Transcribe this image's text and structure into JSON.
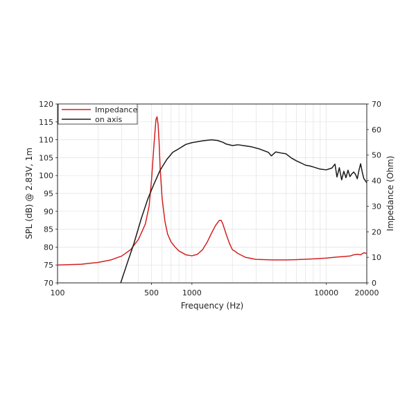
{
  "chart_data": {
    "type": "line",
    "xlabel": "Frequency (Hz)",
    "ylabel_left": "SPL (dB) @ 2.83V, 1m",
    "ylabel_right": "Impedance (Ohm)",
    "x_scale": "log",
    "xlim": [
      100,
      20000
    ],
    "ylim_left": [
      70,
      120
    ],
    "ylim_right": [
      0,
      70
    ],
    "x_ticks": [
      {
        "value": 100,
        "label": "100"
      },
      {
        "value": 500,
        "label": "500"
      },
      {
        "value": 1000,
        "label": "1000"
      },
      {
        "value": 10000,
        "label": "10000"
      },
      {
        "value": 20000,
        "label": "20000"
      }
    ],
    "y_ticks_left": [
      {
        "value": 70,
        "label": "70"
      },
      {
        "value": 75,
        "label": "75"
      },
      {
        "value": 80,
        "label": "80"
      },
      {
        "value": 85,
        "label": "85"
      },
      {
        "value": 90,
        "label": "90"
      },
      {
        "value": 95,
        "label": "95"
      },
      {
        "value": 100,
        "label": "100"
      },
      {
        "value": 105,
        "label": "105"
      },
      {
        "value": 110,
        "label": "110"
      },
      {
        "value": 115,
        "label": "115"
      },
      {
        "value": 120,
        "label": "120"
      }
    ],
    "y_ticks_right": [
      {
        "value": 0,
        "label": "0"
      },
      {
        "value": 10,
        "label": "10"
      },
      {
        "value": 20,
        "label": "20"
      },
      {
        "value": 30,
        "label": "30"
      },
      {
        "value": 40,
        "label": "40"
      },
      {
        "value": 50,
        "label": "50"
      },
      {
        "value": 60,
        "label": "60"
      },
      {
        "value": 70,
        "label": "70"
      }
    ],
    "grid": true,
    "legend_position": "top-left",
    "series": [
      {
        "name": "Impedance",
        "color": "#d42020",
        "axis": "right",
        "x": [
          100,
          150,
          200,
          250,
          300,
          350,
          400,
          450,
          480,
          500,
          520,
          540,
          550,
          560,
          570,
          580,
          600,
          630,
          660,
          700,
          750,
          800,
          900,
          1000,
          1100,
          1200,
          1300,
          1400,
          1500,
          1600,
          1650,
          1700,
          1800,
          1900,
          2000,
          2100,
          2200,
          2500,
          3000,
          4000,
          5000,
          6000,
          8000,
          10000,
          12000,
          15000,
          16000,
          17000,
          18000,
          19000,
          20000
        ],
        "y": [
          7,
          7.3,
          8,
          9,
          10.5,
          13,
          17,
          23,
          30,
          40,
          53,
          64,
          65,
          62,
          55,
          45,
          33,
          24,
          19,
          16,
          14,
          12.5,
          11,
          10.6,
          11.2,
          13,
          16,
          19.5,
          22.5,
          24.5,
          24.5,
          23,
          19,
          15.5,
          13,
          12.3,
          11.5,
          10,
          9.2,
          9,
          9,
          9.1,
          9.4,
          9.7,
          10.1,
          10.5,
          11,
          11.2,
          11,
          11.8,
          11.5
        ]
      },
      {
        "name": "on axis",
        "color": "#1a1a1a",
        "axis": "left",
        "x": [
          295,
          330,
          370,
          420,
          470,
          520,
          580,
          650,
          720,
          800,
          900,
          1000,
          1200,
          1400,
          1550,
          1700,
          1800,
          2000,
          2200,
          2500,
          2800,
          3200,
          3700,
          3900,
          4200,
          4600,
          5000,
          5500,
          6000,
          6500,
          7000,
          7500,
          8000,
          9000,
          10000,
          11000,
          11600,
          12000,
          12500,
          13000,
          13500,
          14000,
          14500,
          15000,
          15500,
          16000,
          16500,
          17000,
          17500,
          18000,
          18500,
          19000,
          20000
        ],
        "y": [
          70,
          75.5,
          81,
          88,
          93.5,
          97.5,
          101.5,
          104.5,
          106.5,
          107.5,
          108.7,
          109.2,
          109.7,
          110,
          109.8,
          109.3,
          108.8,
          108.4,
          108.6,
          108.3,
          108,
          107.4,
          106.5,
          105.5,
          106.6,
          106.3,
          106.1,
          104.9,
          104.1,
          103.5,
          102.9,
          102.7,
          102.4,
          101.8,
          101.6,
          102.1,
          103.2,
          99.6,
          102.2,
          98.8,
          101.2,
          99.4,
          101.5,
          99.7,
          100.5,
          101,
          100.3,
          99.1,
          101.5,
          103.3,
          101,
          99.2,
          98
        ]
      }
    ]
  }
}
